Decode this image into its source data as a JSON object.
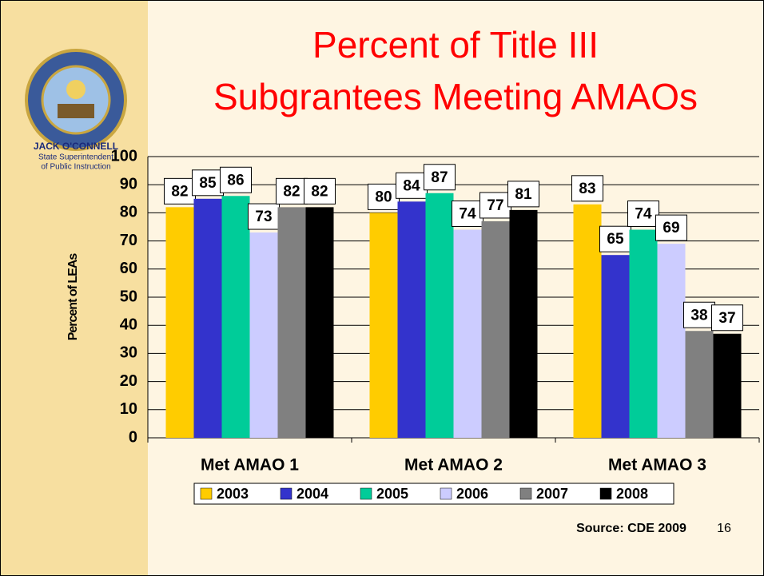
{
  "logo": {
    "name": "JACK O'CONNELL",
    "line1": "State Superintendent",
    "line2": "of Public Instruction"
  },
  "source": "Source: CDE 2009",
  "page_number": "16",
  "chart_data": {
    "type": "bar",
    "title": [
      "Percent of Title III",
      "Subgrantees Meeting AMAOs"
    ],
    "y_label": "Percent of LEAs",
    "categories": [
      "Met AMAO 1",
      "Met AMAO 2",
      "Met AMAO 3"
    ],
    "series": [
      {
        "name": "2003",
        "color": "#ffcc00",
        "values": [
          82,
          80,
          83
        ]
      },
      {
        "name": "2004",
        "color": "#3333cc",
        "values": [
          85,
          84,
          65
        ]
      },
      {
        "name": "2005",
        "color": "#00cc99",
        "values": [
          86,
          87,
          74
        ]
      },
      {
        "name": "2006",
        "color": "#ccccff",
        "values": [
          73,
          74,
          69
        ]
      },
      {
        "name": "2007",
        "color": "#808080",
        "values": [
          82,
          77,
          38
        ]
      },
      {
        "name": "2008",
        "color": "#000000",
        "values": [
          82,
          81,
          37
        ]
      }
    ],
    "ylim": [
      0,
      100
    ],
    "yticks": [
      0,
      10,
      20,
      30,
      40,
      50,
      60,
      70,
      80,
      90,
      100
    ],
    "grid": true
  }
}
